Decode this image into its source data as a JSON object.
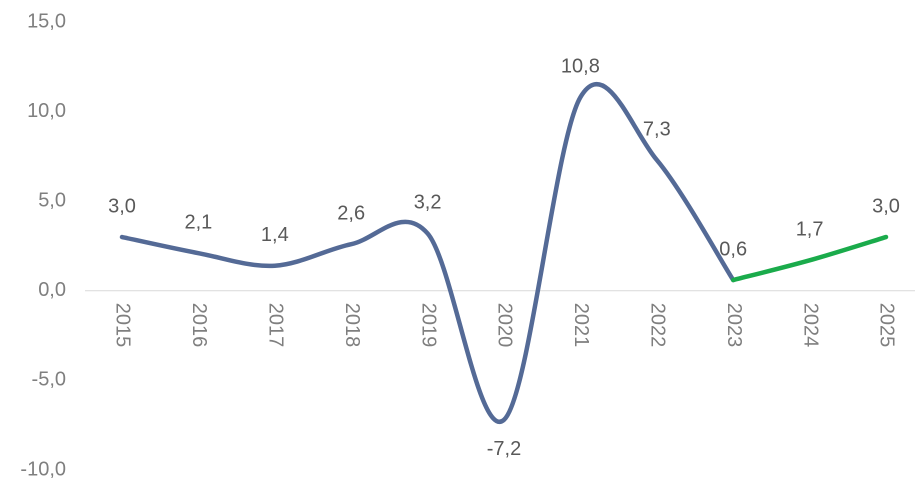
{
  "chart_data": {
    "type": "line",
    "categories": [
      "2015",
      "2016",
      "2017",
      "2018",
      "2019",
      "2020",
      "2021",
      "2022",
      "2023",
      "2024",
      "2025"
    ],
    "series": [
      {
        "color": "#546a96",
        "values": [
          3.0,
          2.1,
          1.4,
          2.6,
          3.2,
          -7.2,
          10.8,
          7.3,
          0.6,
          null,
          null
        ],
        "value_labels": [
          "3,0",
          "2,1",
          "1,4",
          "2,6",
          "3,2",
          "-7,2",
          "10,8",
          "7,3",
          "0,6",
          null,
          null
        ]
      },
      {
        "color": "#1aab4b",
        "values": [
          null,
          null,
          null,
          null,
          null,
          null,
          null,
          null,
          0.6,
          1.7,
          3.0
        ],
        "value_labels": [
          null,
          null,
          null,
          null,
          null,
          null,
          null,
          null,
          null,
          "1,7",
          "3,0"
        ]
      }
    ],
    "ylim": [
      -10,
      15
    ],
    "yticks": [
      {
        "value": -10,
        "label": "-10,0"
      },
      {
        "value": -5,
        "label": "-5,0"
      },
      {
        "value": 0,
        "label": "0,0"
      },
      {
        "value": 5,
        "label": "5,0"
      },
      {
        "value": 10,
        "label": "10,0"
      },
      {
        "value": 15,
        "label": "15,0"
      }
    ],
    "smooth": true
  }
}
